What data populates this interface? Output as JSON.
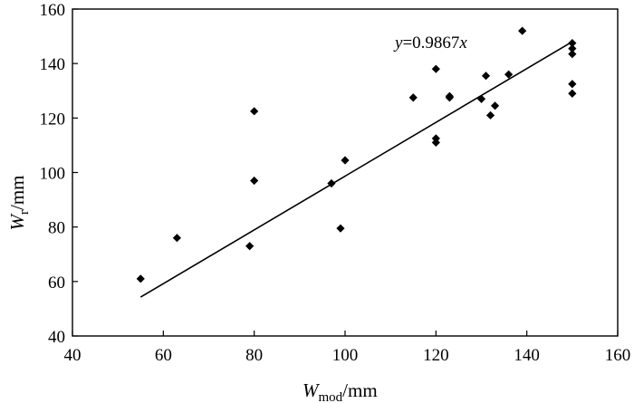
{
  "chart_data": {
    "type": "scatter",
    "title": "",
    "xlabel": {
      "symbol": "W",
      "subscript": "mod",
      "unit": "/mm"
    },
    "ylabel": {
      "symbol": "W",
      "subscript": "r",
      "unit": "/mm"
    },
    "xlim": [
      40,
      160
    ],
    "ylim": [
      40,
      160
    ],
    "xticks": [
      "40",
      "60",
      "80",
      "100",
      "120",
      "140",
      "160"
    ],
    "yticks": [
      "40",
      "60",
      "80",
      "100",
      "120",
      "140",
      "160"
    ],
    "grid": false,
    "legend": "none",
    "marker": "diamond",
    "marker_color": "#000000",
    "points": [
      {
        "x": 55,
        "y": 61
      },
      {
        "x": 63,
        "y": 76
      },
      {
        "x": 79,
        "y": 73
      },
      {
        "x": 80,
        "y": 97
      },
      {
        "x": 80,
        "y": 122.5
      },
      {
        "x": 97,
        "y": 96
      },
      {
        "x": 99,
        "y": 79.5
      },
      {
        "x": 100,
        "y": 104.5
      },
      {
        "x": 115,
        "y": 127.5
      },
      {
        "x": 120,
        "y": 111
      },
      {
        "x": 120,
        "y": 112.5
      },
      {
        "x": 120,
        "y": 138
      },
      {
        "x": 123,
        "y": 127.5
      },
      {
        "x": 123,
        "y": 128
      },
      {
        "x": 130,
        "y": 127
      },
      {
        "x": 131,
        "y": 135.5
      },
      {
        "x": 132,
        "y": 121
      },
      {
        "x": 133,
        "y": 124.5
      },
      {
        "x": 136,
        "y": 136
      },
      {
        "x": 139,
        "y": 152
      },
      {
        "x": 150,
        "y": 129
      },
      {
        "x": 150,
        "y": 132.5
      },
      {
        "x": 150,
        "y": 143.5
      },
      {
        "x": 150,
        "y": 145.5
      },
      {
        "x": 150,
        "y": 147.5
      }
    ],
    "fit_line": {
      "slope": 0.9867,
      "x_range": [
        55,
        150
      ],
      "color": "#000000"
    },
    "annotation": {
      "var": "y",
      "eq": "=0.9867",
      "x_var": "x"
    }
  }
}
